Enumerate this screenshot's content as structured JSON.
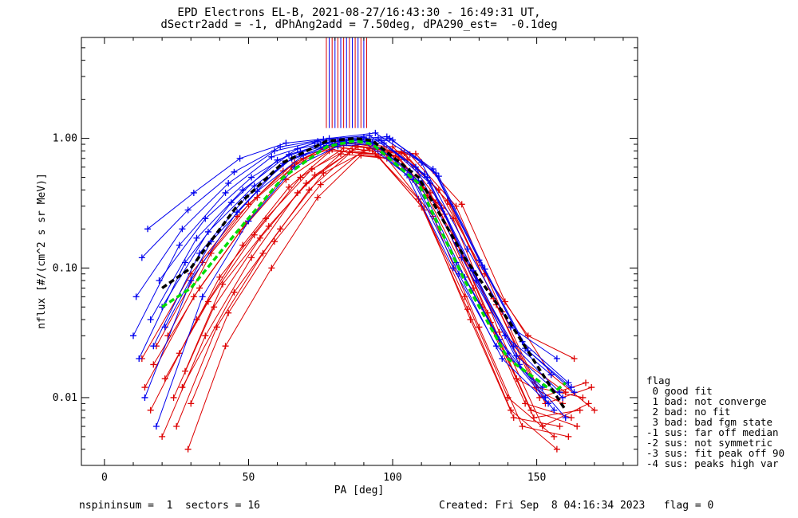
{
  "title": {
    "line1": "EPD Electrons EL-B, 2021-08-27/16:43:30 - 16:49:31 UT,",
    "line2": "dSectr2add = -1, dPhAng2add = 7.50deg, dPA290_est=  -0.1deg"
  },
  "footer": {
    "left": "nspininsum =  1  sectors = 16",
    "right": "Created: Fri Sep  8 04:16:34 2023   flag = 0"
  },
  "legend": {
    "title": "flag",
    "items": [
      " 0 good fit",
      " 1 bad: not converge",
      " 2 bad: no fit",
      " 3 bad: bad fgm state",
      "-1 sus: far off median",
      "-2 sus: not symmetric",
      "-3 sus: fit peak off 90",
      "-4 sus: peaks high var"
    ]
  },
  "colors": {
    "red": "#dd0000",
    "blue": "#0000ee",
    "green": "#00dd00",
    "black": "#000000"
  },
  "chart_data": {
    "type": "line",
    "xlabel": "PA [deg]",
    "ylabel": "nflux [#/(cm^2 s sr MeV)]",
    "xlim": [
      -8,
      185
    ],
    "ylim": [
      0.003,
      6.0
    ],
    "yscale": "log",
    "xticks": [
      0,
      50,
      100,
      150
    ],
    "xticklabels": [
      "0",
      "50",
      "100",
      "150"
    ],
    "yticks": [
      0.01,
      0.1,
      1.0
    ],
    "yticklabels": [
      "0.01",
      "0.10",
      "1.00"
    ],
    "vertical_markers_pa": [
      77,
      78,
      79,
      80,
      81,
      82,
      83,
      84,
      85,
      86,
      87,
      88,
      89,
      90,
      91
    ],
    "vertical_marker_range": [
      1.2,
      6.0
    ],
    "series": [
      {
        "color": "red",
        "x": [
          13,
          30,
          46,
          62,
          77,
          93,
          109,
          125,
          140,
          156
        ],
        "y": [
          0.02,
          0.09,
          0.25,
          0.56,
          0.87,
          0.8,
          0.34,
          0.06,
          0.01,
          0.005
        ]
      },
      {
        "color": "red",
        "x": [
          14,
          31,
          47,
          63,
          78,
          94,
          110,
          126,
          141,
          157
        ],
        "y": [
          0.012,
          0.06,
          0.19,
          0.48,
          0.8,
          0.76,
          0.3,
          0.048,
          0.008,
          0.004
        ]
      },
      {
        "color": "red",
        "x": [
          16,
          32,
          48,
          64,
          79,
          95,
          111,
          127,
          142,
          158
        ],
        "y": [
          0.008,
          0.04,
          0.15,
          0.42,
          0.82,
          0.73,
          0.28,
          0.04,
          0.007,
          0.006
        ]
      },
      {
        "color": "red",
        "x": [
          17,
          33,
          49,
          65,
          80,
          96,
          112,
          128,
          143,
          159
        ],
        "y": [
          0.018,
          0.07,
          0.22,
          0.6,
          0.9,
          0.82,
          0.36,
          0.07,
          0.014,
          0.009
        ]
      },
      {
        "color": "red",
        "x": [
          18,
          34,
          50,
          66,
          81,
          97,
          113,
          129,
          144,
          160
        ],
        "y": [
          0.025,
          0.11,
          0.31,
          0.65,
          0.95,
          0.84,
          0.38,
          0.08,
          0.02,
          0.011
        ]
      },
      {
        "color": "red",
        "x": [
          20,
          35,
          51,
          67,
          82,
          98,
          114,
          130,
          145,
          161
        ],
        "y": [
          0.005,
          0.03,
          0.12,
          0.38,
          0.76,
          0.7,
          0.25,
          0.035,
          0.006,
          0.005
        ]
      },
      {
        "color": "red",
        "x": [
          21,
          36,
          52,
          68,
          83,
          99,
          115,
          131,
          146,
          162
        ],
        "y": [
          0.014,
          0.055,
          0.18,
          0.5,
          0.84,
          0.78,
          0.32,
          0.05,
          0.009,
          0.007
        ]
      },
      {
        "color": "red",
        "x": [
          22,
          37,
          53,
          69,
          84,
          100,
          116,
          132,
          147,
          163
        ],
        "y": [
          0.03,
          0.13,
          0.35,
          0.7,
          0.92,
          0.86,
          0.4,
          0.09,
          0.03,
          0.02
        ]
      },
      {
        "color": "red",
        "x": [
          24,
          38,
          54,
          70,
          85,
          101,
          117,
          133,
          148,
          164
        ],
        "y": [
          0.01,
          0.05,
          0.17,
          0.45,
          0.78,
          0.74,
          0.29,
          0.045,
          0.008,
          0.006
        ]
      },
      {
        "color": "red",
        "x": [
          25,
          39,
          55,
          71,
          86,
          102,
          118,
          134,
          149,
          165
        ],
        "y": [
          0.006,
          0.035,
          0.13,
          0.4,
          0.8,
          0.72,
          0.26,
          0.038,
          0.007,
          0.008
        ]
      },
      {
        "color": "red",
        "x": [
          26,
          40,
          56,
          72,
          87,
          103,
          119,
          135,
          150,
          166
        ],
        "y": [
          0.022,
          0.085,
          0.24,
          0.58,
          0.88,
          0.79,
          0.33,
          0.058,
          0.012,
          0.01
        ]
      },
      {
        "color": "red",
        "x": [
          28,
          41,
          57,
          73,
          88,
          104,
          120,
          136,
          151,
          167
        ],
        "y": [
          0.016,
          0.075,
          0.21,
          0.52,
          0.86,
          0.77,
          0.31,
          0.052,
          0.01,
          0.013
        ]
      },
      {
        "color": "red",
        "x": [
          29,
          42,
          58,
          74,
          89,
          105,
          121,
          137,
          152,
          168
        ],
        "y": [
          0.004,
          0.025,
          0.1,
          0.35,
          0.74,
          0.68,
          0.24,
          0.032,
          0.006,
          0.009
        ]
      },
      {
        "color": "red",
        "x": [
          30,
          43,
          59,
          75,
          90,
          106,
          122,
          138,
          153,
          169
        ],
        "y": [
          0.009,
          0.045,
          0.16,
          0.44,
          0.81,
          0.75,
          0.3,
          0.046,
          0.009,
          0.012
        ]
      },
      {
        "color": "red",
        "x": [
          27,
          45,
          61,
          76,
          92,
          108,
          124,
          139,
          155,
          170
        ],
        "y": [
          0.012,
          0.065,
          0.2,
          0.54,
          0.83,
          0.76,
          0.31,
          0.055,
          0.015,
          0.008
        ]
      },
      {
        "color": "blue",
        "x": [
          10,
          26,
          42,
          58,
          73,
          89,
          105,
          121,
          136,
          152
        ],
        "y": [
          0.03,
          0.15,
          0.38,
          0.72,
          0.92,
          0.98,
          0.52,
          0.1,
          0.025,
          0.012
        ]
      },
      {
        "color": "blue",
        "x": [
          11,
          27,
          43,
          59,
          74,
          90,
          106,
          122,
          137,
          153
        ],
        "y": [
          0.06,
          0.2,
          0.45,
          0.8,
          0.95,
          1.02,
          0.56,
          0.11,
          0.028,
          0.01
        ]
      },
      {
        "color": "blue",
        "x": [
          12,
          28,
          44,
          60,
          75,
          91,
          107,
          123,
          138,
          154
        ],
        "y": [
          0.02,
          0.11,
          0.32,
          0.68,
          0.9,
          0.95,
          0.48,
          0.09,
          0.02,
          0.009
        ]
      },
      {
        "color": "blue",
        "x": [
          13,
          29,
          45,
          61,
          76,
          92,
          108,
          124,
          139,
          155
        ],
        "y": [
          0.12,
          0.28,
          0.55,
          0.86,
          0.98,
          1.05,
          0.6,
          0.12,
          0.03,
          0.015
        ]
      },
      {
        "color": "blue",
        "x": [
          14,
          30,
          46,
          62,
          77,
          93,
          109,
          125,
          140,
          156
        ],
        "y": [
          0.01,
          0.08,
          0.27,
          0.64,
          0.88,
          0.93,
          0.47,
          0.085,
          0.022,
          0.008
        ]
      },
      {
        "color": "blue",
        "x": [
          15,
          31,
          47,
          63,
          78,
          94,
          110,
          126,
          141,
          157
        ],
        "y": [
          0.2,
          0.38,
          0.7,
          0.92,
          1.0,
          1.1,
          0.65,
          0.14,
          0.035,
          0.02
        ]
      },
      {
        "color": "blue",
        "x": [
          16,
          32,
          48,
          64,
          79,
          95,
          111,
          127,
          142,
          158
        ],
        "y": [
          0.04,
          0.17,
          0.4,
          0.75,
          0.94,
          0.99,
          0.53,
          0.1,
          0.025,
          0.011
        ]
      },
      {
        "color": "blue",
        "x": [
          17,
          33,
          49,
          65,
          80,
          96,
          112,
          128,
          143,
          159
        ],
        "y": [
          0.025,
          0.13,
          0.35,
          0.7,
          0.91,
          0.96,
          0.5,
          0.095,
          0.021,
          0.01
        ]
      },
      {
        "color": "blue",
        "x": [
          18,
          34,
          50,
          66,
          81,
          97,
          113,
          129,
          144,
          160
        ],
        "y": [
          0.006,
          0.06,
          0.23,
          0.6,
          0.87,
          0.92,
          0.45,
          0.08,
          0.018,
          0.007
        ]
      },
      {
        "color": "blue",
        "x": [
          19,
          35,
          51,
          67,
          82,
          98,
          114,
          130,
          145,
          161
        ],
        "y": [
          0.08,
          0.24,
          0.5,
          0.83,
          0.97,
          1.03,
          0.58,
          0.115,
          0.027,
          0.013
        ]
      },
      {
        "color": "blue",
        "x": [
          20,
          36,
          52,
          68,
          83,
          99,
          115,
          131,
          146,
          162
        ],
        "y": [
          0.05,
          0.19,
          0.43,
          0.78,
          0.95,
          1.0,
          0.54,
          0.105,
          0.024,
          0.012
        ]
      },
      {
        "color": "blue",
        "x": [
          21,
          37,
          53,
          69,
          84,
          100,
          116,
          132,
          147,
          163
        ],
        "y": [
          0.035,
          0.16,
          0.39,
          0.74,
          0.93,
          0.97,
          0.51,
          0.098,
          0.023,
          0.011
        ]
      }
    ],
    "fits": [
      {
        "color": "green",
        "style": "dashed",
        "x": [
          20,
          30,
          46,
          62,
          77,
          87,
          93,
          109,
          125,
          140,
          156,
          160
        ],
        "y": [
          0.05,
          0.07,
          0.19,
          0.5,
          0.86,
          0.96,
          0.9,
          0.45,
          0.08,
          0.02,
          0.011,
          0.013
        ]
      },
      {
        "color": "black",
        "style": "dashed",
        "x": [
          20,
          30,
          46,
          62,
          77,
          87,
          93,
          109,
          125,
          140,
          156,
          160
        ],
        "y": [
          0.07,
          0.1,
          0.3,
          0.65,
          0.95,
          1.0,
          0.96,
          0.5,
          0.12,
          0.04,
          0.011,
          0.008
        ]
      }
    ]
  }
}
